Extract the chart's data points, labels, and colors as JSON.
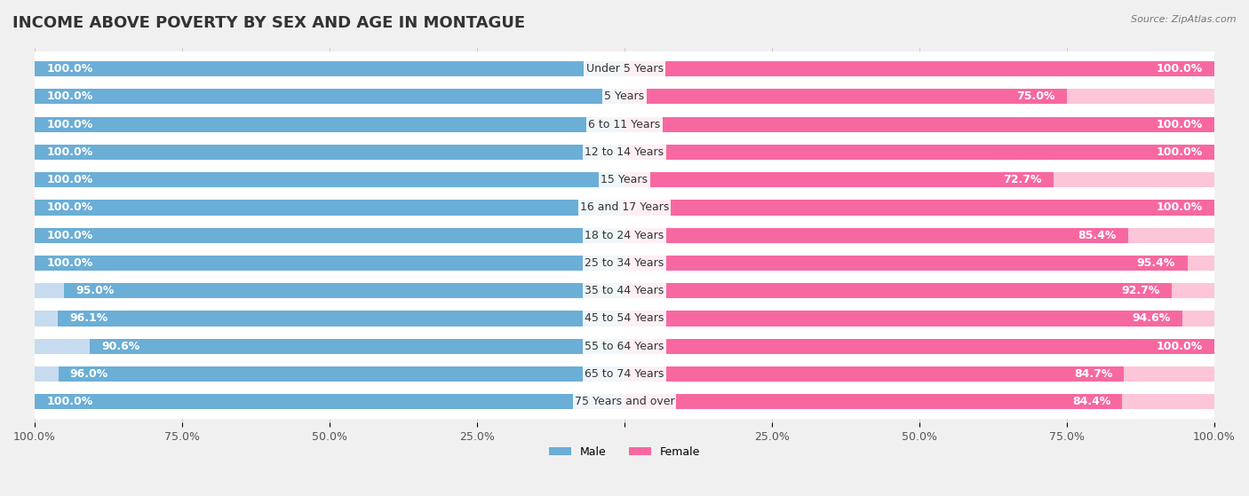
{
  "title": "INCOME ABOVE POVERTY BY SEX AND AGE IN MONTAGUE",
  "source": "Source: ZipAtlas.com",
  "categories": [
    "Under 5 Years",
    "5 Years",
    "6 to 11 Years",
    "12 to 14 Years",
    "15 Years",
    "16 and 17 Years",
    "18 to 24 Years",
    "25 to 34 Years",
    "35 to 44 Years",
    "45 to 54 Years",
    "55 to 64 Years",
    "65 to 74 Years",
    "75 Years and over"
  ],
  "male_values": [
    100.0,
    100.0,
    100.0,
    100.0,
    100.0,
    100.0,
    100.0,
    100.0,
    95.0,
    96.1,
    90.6,
    96.0,
    100.0
  ],
  "female_values": [
    100.0,
    75.0,
    100.0,
    100.0,
    72.7,
    100.0,
    85.4,
    95.4,
    92.7,
    94.6,
    100.0,
    84.7,
    84.4
  ],
  "male_color": "#6baed6",
  "female_color": "#f768a1",
  "male_light_color": "#c6dbef",
  "female_light_color": "#fcc5d8",
  "background_color": "#f0f0f0",
  "bar_background": "#ffffff",
  "title_fontsize": 13,
  "label_fontsize": 9,
  "tick_fontsize": 9,
  "bar_height": 0.55,
  "legend_male": "Male",
  "legend_female": "Female"
}
